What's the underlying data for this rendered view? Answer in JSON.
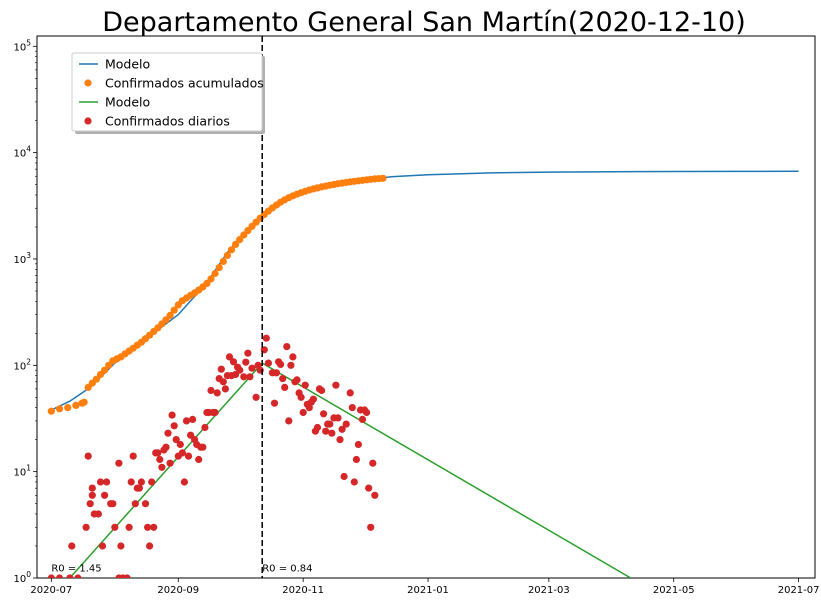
{
  "chart_data": {
    "type": "scatter",
    "title": "Departamento General San Martín(2020-12-10)",
    "y_scale": "log",
    "ylim": [
      1,
      125000
    ],
    "xlim": [
      "2020-06-24",
      "2021-07-09"
    ],
    "x_ticks": [
      "2020-07-01",
      "2020-09-01",
      "2020-11-01",
      "2021-01-01",
      "2021-03-01",
      "2021-05-01",
      "2021-07-01"
    ],
    "x_tick_labels": [
      "2020-07",
      "2020-09",
      "2020-11",
      "2021-01",
      "2021-03",
      "2021-05",
      "2021-07"
    ],
    "y_ticks": [
      1,
      10,
      100,
      1000,
      10000,
      100000
    ],
    "y_tick_labels": [
      {
        "base": "10",
        "exp": "0"
      },
      {
        "base": "10",
        "exp": "1"
      },
      {
        "base": "10",
        "exp": "2"
      },
      {
        "base": "10",
        "exp": "3"
      },
      {
        "base": "10",
        "exp": "4"
      },
      {
        "base": "10",
        "exp": "5"
      }
    ],
    "grid": false,
    "legend_position": "top-left",
    "legend": [
      {
        "label": "Modelo",
        "kind": "line",
        "color": "#1f77b4"
      },
      {
        "label": "Confirmados acumulados",
        "kind": "marker",
        "color": "#ff7f0e"
      },
      {
        "label": "Modelo",
        "kind": "line",
        "color": "#2ca02c"
      },
      {
        "label": "Confirmados diarios",
        "kind": "marker",
        "color": "#d62728"
      }
    ],
    "vline": {
      "x": "2020-10-12",
      "style": "dashed",
      "color": "#000000"
    },
    "annotations": [
      {
        "text": "R0 = 1.45",
        "x": "2020-07-01",
        "y": 1.15
      },
      {
        "text": "R0 = 0.84",
        "x": "2020-10-12",
        "y": 1.15
      }
    ],
    "series": [
      {
        "kind": "line",
        "color": "#1f77b4",
        "points": [
          [
            "2020-07-01",
            38
          ],
          [
            "2020-07-10",
            46
          ],
          [
            "2020-07-20",
            62
          ],
          [
            "2020-08-01",
            105
          ],
          [
            "2020-08-15",
            170
          ],
          [
            "2020-09-01",
            300
          ],
          [
            "2020-09-15",
            600
          ],
          [
            "2020-09-25",
            1150
          ],
          [
            "2020-10-05",
            1900
          ],
          [
            "2020-10-12",
            2600
          ],
          [
            "2020-10-20",
            3400
          ],
          [
            "2020-11-01",
            4300
          ],
          [
            "2020-11-15",
            5000
          ],
          [
            "2020-12-01",
            5600
          ],
          [
            "2020-12-15",
            5950
          ],
          [
            "2021-01-01",
            6200
          ],
          [
            "2021-02-01",
            6450
          ],
          [
            "2021-03-01",
            6560
          ],
          [
            "2021-04-01",
            6620
          ],
          [
            "2021-05-01",
            6650
          ],
          [
            "2021-06-01",
            6660
          ],
          [
            "2021-07-01",
            6670
          ]
        ]
      },
      {
        "kind": "marker",
        "color": "#ff7f0e",
        "points": [
          [
            "2020-07-01",
            37
          ],
          [
            "2020-07-05",
            39
          ],
          [
            "2020-07-09",
            40
          ],
          [
            "2020-07-13",
            42
          ],
          [
            "2020-07-16",
            44
          ],
          [
            "2020-07-17",
            45
          ],
          [
            "2020-07-19",
            62
          ],
          [
            "2020-07-21",
            68
          ],
          [
            "2020-07-23",
            74
          ],
          [
            "2020-07-25",
            82
          ],
          [
            "2020-07-27",
            90
          ],
          [
            "2020-07-29",
            100
          ],
          [
            "2020-07-31",
            110
          ],
          [
            "2020-08-02",
            115
          ],
          [
            "2020-08-04",
            120
          ],
          [
            "2020-08-06",
            128
          ],
          [
            "2020-08-08",
            136
          ],
          [
            "2020-08-10",
            145
          ],
          [
            "2020-08-12",
            155
          ],
          [
            "2020-08-14",
            165
          ],
          [
            "2020-08-16",
            178
          ],
          [
            "2020-08-18",
            192
          ],
          [
            "2020-08-20",
            208
          ],
          [
            "2020-08-22",
            225
          ],
          [
            "2020-08-24",
            245
          ],
          [
            "2020-08-26",
            268
          ],
          [
            "2020-08-28",
            295
          ],
          [
            "2020-08-30",
            330
          ],
          [
            "2020-09-01",
            370
          ],
          [
            "2020-09-03",
            405
          ],
          [
            "2020-09-05",
            430
          ],
          [
            "2020-09-07",
            455
          ],
          [
            "2020-09-09",
            480
          ],
          [
            "2020-09-11",
            510
          ],
          [
            "2020-09-13",
            545
          ],
          [
            "2020-09-15",
            590
          ],
          [
            "2020-09-17",
            650
          ],
          [
            "2020-09-19",
            730
          ],
          [
            "2020-09-21",
            830
          ],
          [
            "2020-09-23",
            950
          ],
          [
            "2020-09-25",
            1080
          ],
          [
            "2020-09-27",
            1220
          ],
          [
            "2020-09-29",
            1370
          ],
          [
            "2020-10-01",
            1520
          ],
          [
            "2020-10-03",
            1680
          ],
          [
            "2020-10-05",
            1850
          ],
          [
            "2020-10-07",
            2030
          ],
          [
            "2020-10-09",
            2220
          ],
          [
            "2020-10-11",
            2420
          ],
          [
            "2020-10-13",
            2620
          ],
          [
            "2020-10-15",
            2820
          ],
          [
            "2020-10-17",
            3020
          ],
          [
            "2020-10-19",
            3220
          ],
          [
            "2020-10-21",
            3420
          ],
          [
            "2020-10-23",
            3600
          ],
          [
            "2020-10-25",
            3770
          ],
          [
            "2020-10-27",
            3930
          ],
          [
            "2020-10-29",
            4070
          ],
          [
            "2020-10-31",
            4200
          ],
          [
            "2020-11-02",
            4330
          ],
          [
            "2020-11-04",
            4450
          ],
          [
            "2020-11-06",
            4560
          ],
          [
            "2020-11-08",
            4660
          ],
          [
            "2020-11-10",
            4760
          ],
          [
            "2020-11-12",
            4850
          ],
          [
            "2020-11-14",
            4940
          ],
          [
            "2020-11-16",
            5020
          ],
          [
            "2020-11-18",
            5100
          ],
          [
            "2020-11-20",
            5170
          ],
          [
            "2020-11-22",
            5240
          ],
          [
            "2020-11-24",
            5310
          ],
          [
            "2020-11-26",
            5380
          ],
          [
            "2020-11-28",
            5440
          ],
          [
            "2020-11-30",
            5500
          ],
          [
            "2020-12-02",
            5560
          ],
          [
            "2020-12-04",
            5610
          ],
          [
            "2020-12-06",
            5660
          ],
          [
            "2020-12-08",
            5700
          ],
          [
            "2020-12-10",
            5740
          ]
        ]
      },
      {
        "kind": "line",
        "color": "#2ca02c",
        "points": [
          [
            "2020-07-10",
            1
          ],
          [
            "2020-10-12",
            105
          ],
          [
            "2021-04-10",
            1
          ]
        ]
      },
      {
        "kind": "marker",
        "color": "#d62728",
        "points": [
          [
            "2020-07-01",
            1
          ],
          [
            "2020-07-05",
            1
          ],
          [
            "2020-07-10",
            1
          ],
          [
            "2020-07-14",
            1
          ],
          [
            "2020-07-11",
            2
          ],
          [
            "2020-07-18",
            3
          ],
          [
            "2020-07-19",
            14
          ],
          [
            "2020-07-20",
            5
          ],
          [
            "2020-07-21",
            6
          ],
          [
            "2020-07-21",
            7
          ],
          [
            "2020-07-22",
            4
          ],
          [
            "2020-07-24",
            4
          ],
          [
            "2020-07-25",
            8
          ],
          [
            "2020-07-26",
            2
          ],
          [
            "2020-07-27",
            6
          ],
          [
            "2020-07-28",
            8
          ],
          [
            "2020-07-30",
            5
          ],
          [
            "2020-07-31",
            5
          ],
          [
            "2020-08-01",
            3
          ],
          [
            "2020-08-03",
            12
          ],
          [
            "2020-08-03",
            1
          ],
          [
            "2020-08-04",
            2
          ],
          [
            "2020-08-05",
            1
          ],
          [
            "2020-08-07",
            1
          ],
          [
            "2020-08-08",
            3
          ],
          [
            "2020-08-09",
            8
          ],
          [
            "2020-08-10",
            14
          ],
          [
            "2020-08-11",
            5
          ],
          [
            "2020-08-12",
            7
          ],
          [
            "2020-08-13",
            7
          ],
          [
            "2020-08-14",
            8
          ],
          [
            "2020-08-16",
            5
          ],
          [
            "2020-08-17",
            3
          ],
          [
            "2020-08-18",
            2
          ],
          [
            "2020-08-19",
            8
          ],
          [
            "2020-08-20",
            3
          ],
          [
            "2020-08-21",
            15
          ],
          [
            "2020-08-22",
            15
          ],
          [
            "2020-08-23",
            13
          ],
          [
            "2020-08-24",
            11
          ],
          [
            "2020-08-25",
            16
          ],
          [
            "2020-08-26",
            17
          ],
          [
            "2020-08-27",
            23
          ],
          [
            "2020-08-28",
            12
          ],
          [
            "2020-08-29",
            34
          ],
          [
            "2020-08-30",
            27
          ],
          [
            "2020-08-31",
            20
          ],
          [
            "2020-09-01",
            14
          ],
          [
            "2020-09-02",
            18
          ],
          [
            "2020-09-03",
            15
          ],
          [
            "2020-09-04",
            8
          ],
          [
            "2020-09-05",
            30
          ],
          [
            "2020-09-06",
            14
          ],
          [
            "2020-09-07",
            22
          ],
          [
            "2020-09-08",
            31
          ],
          [
            "2020-09-09",
            20
          ],
          [
            "2020-09-10",
            18
          ],
          [
            "2020-09-11",
            13
          ],
          [
            "2020-09-12",
            17
          ],
          [
            "2020-09-13",
            17
          ],
          [
            "2020-09-14",
            26
          ],
          [
            "2020-09-15",
            36
          ],
          [
            "2020-09-16",
            36
          ],
          [
            "2020-09-17",
            58
          ],
          [
            "2020-09-18",
            36
          ],
          [
            "2020-09-19",
            36
          ],
          [
            "2020-09-20",
            55
          ],
          [
            "2020-09-21",
            75
          ],
          [
            "2020-09-22",
            92
          ],
          [
            "2020-09-23",
            70
          ],
          [
            "2020-09-24",
            60
          ],
          [
            "2020-09-25",
            80
          ],
          [
            "2020-09-26",
            120
          ],
          [
            "2020-09-27",
            80
          ],
          [
            "2020-09-28",
            108
          ],
          [
            "2020-09-29",
            82
          ],
          [
            "2020-09-30",
            96
          ],
          [
            "2020-10-01",
            90
          ],
          [
            "2020-10-03",
            78
          ],
          [
            "2020-10-04",
            107
          ],
          [
            "2020-10-05",
            130
          ],
          [
            "2020-10-06",
            78
          ],
          [
            "2020-10-07",
            94
          ],
          [
            "2020-10-09",
            50
          ],
          [
            "2020-10-10",
            100
          ],
          [
            "2020-10-11",
            90
          ],
          [
            "2020-10-13",
            140
          ],
          [
            "2020-10-14",
            180
          ],
          [
            "2020-10-15",
            105
          ],
          [
            "2020-10-17",
            85
          ],
          [
            "2020-10-18",
            44
          ],
          [
            "2020-10-19",
            85
          ],
          [
            "2020-10-20",
            108
          ],
          [
            "2020-10-21",
            102
          ],
          [
            "2020-10-22",
            75
          ],
          [
            "2020-10-23",
            62
          ],
          [
            "2020-10-24",
            150
          ],
          [
            "2020-10-25",
            30
          ],
          [
            "2020-10-26",
            100
          ],
          [
            "2020-10-27",
            120
          ],
          [
            "2020-10-28",
            70
          ],
          [
            "2020-10-29",
            73
          ],
          [
            "2020-10-30",
            55
          ],
          [
            "2020-10-31",
            50
          ],
          [
            "2020-11-01",
            36
          ],
          [
            "2020-11-02",
            65
          ],
          [
            "2020-11-03",
            43
          ],
          [
            "2020-11-04",
            40
          ],
          [
            "2020-11-05",
            45
          ],
          [
            "2020-11-06",
            48
          ],
          [
            "2020-11-07",
            24
          ],
          [
            "2020-11-08",
            26
          ],
          [
            "2020-11-09",
            60
          ],
          [
            "2020-11-10",
            58
          ],
          [
            "2020-11-11",
            35
          ],
          [
            "2020-11-12",
            24
          ],
          [
            "2020-11-13",
            28
          ],
          [
            "2020-11-14",
            28
          ],
          [
            "2020-11-15",
            23
          ],
          [
            "2020-11-16",
            32
          ],
          [
            "2020-11-17",
            65
          ],
          [
            "2020-11-18",
            32
          ],
          [
            "2020-11-19",
            20
          ],
          [
            "2020-11-20",
            25
          ],
          [
            "2020-11-21",
            9
          ],
          [
            "2020-11-22",
            28
          ],
          [
            "2020-11-24",
            55
          ],
          [
            "2020-11-25",
            40
          ],
          [
            "2020-11-26",
            8
          ],
          [
            "2020-11-27",
            13
          ],
          [
            "2020-11-28",
            18
          ],
          [
            "2020-11-29",
            38
          ],
          [
            "2020-11-30",
            31
          ],
          [
            "2020-12-01",
            38
          ],
          [
            "2020-12-02",
            36
          ],
          [
            "2020-12-03",
            7
          ],
          [
            "2020-12-04",
            3
          ],
          [
            "2020-12-05",
            12
          ],
          [
            "2020-12-06",
            6
          ]
        ]
      }
    ]
  }
}
